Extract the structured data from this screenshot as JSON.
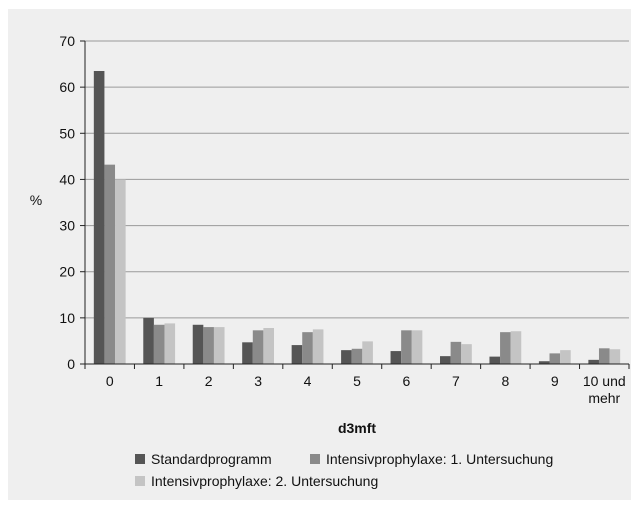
{
  "chart_data": {
    "type": "bar",
    "ylabel": "%",
    "xlabel": "d3mft",
    "ylim": [
      0,
      70
    ],
    "yticks": [
      0,
      10,
      20,
      30,
      40,
      50,
      60,
      70
    ],
    "grid": true,
    "legend_position": "bottom",
    "categories": [
      "0",
      "1",
      "2",
      "3",
      "4",
      "5",
      "6",
      "7",
      "8",
      "9",
      "10 und mehr"
    ],
    "category_lines": [
      [
        "0"
      ],
      [
        "1"
      ],
      [
        "2"
      ],
      [
        "3"
      ],
      [
        "4"
      ],
      [
        "5"
      ],
      [
        "6"
      ],
      [
        "7"
      ],
      [
        "8"
      ],
      [
        "9"
      ],
      [
        "10 und",
        "mehr"
      ]
    ],
    "series": [
      {
        "name": "Standardprogramm",
        "color": "#555555",
        "values": [
          63.5,
          10.0,
          8.5,
          4.7,
          4.1,
          3.0,
          2.8,
          1.7,
          1.6,
          0.6,
          0.9
        ]
      },
      {
        "name": "Intensivprophylaxe: 1. Untersuchung",
        "color": "#8a8a8a",
        "values": [
          43.2,
          8.5,
          8.0,
          7.3,
          6.9,
          3.3,
          7.3,
          4.8,
          6.9,
          2.3,
          3.4
        ]
      },
      {
        "name": "Intensivprophylaxe: 2. Untersuchung",
        "color": "#c4c4c4",
        "values": [
          40.0,
          8.8,
          8.0,
          7.8,
          7.5,
          4.9,
          7.3,
          4.3,
          7.1,
          3.0,
          3.2
        ]
      }
    ]
  }
}
